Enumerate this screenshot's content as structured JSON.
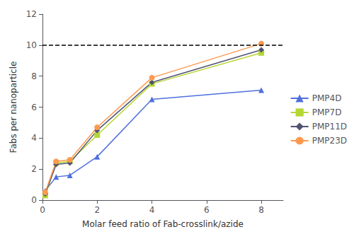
{
  "chart_data": {
    "type": "line",
    "xlabel": "Molar feed ratio of Fab-crosslink/azide",
    "ylabel": "Fabs per nanoparticle",
    "x": [
      0.1,
      0.5,
      1,
      2,
      4,
      8
    ],
    "series": [
      {
        "name": "PMP4D",
        "marker": "triangle",
        "values": [
          0.6,
          1.5,
          1.6,
          2.8,
          6.5,
          7.1
        ]
      },
      {
        "name": "PMP7D",
        "marker": "square",
        "values": [
          0.3,
          2.4,
          2.5,
          4.2,
          7.5,
          9.5
        ]
      },
      {
        "name": "PMP11D",
        "marker": "diamond",
        "values": [
          0.4,
          2.3,
          2.4,
          4.5,
          7.6,
          9.7
        ]
      },
      {
        "name": "PMP23D",
        "marker": "circle",
        "values": [
          0.5,
          2.5,
          2.6,
          4.7,
          7.9,
          10.1
        ]
      }
    ],
    "reference_lines": [
      {
        "y": 10,
        "line_style": "dashed"
      }
    ],
    "xlim": [
      0,
      8.8
    ],
    "xticks": [
      0,
      2,
      4,
      6,
      8
    ],
    "ylim": [
      0,
      12
    ],
    "yticks": [
      0,
      2,
      4,
      6,
      8,
      10,
      12
    ],
    "grid": false,
    "legend": "right"
  }
}
